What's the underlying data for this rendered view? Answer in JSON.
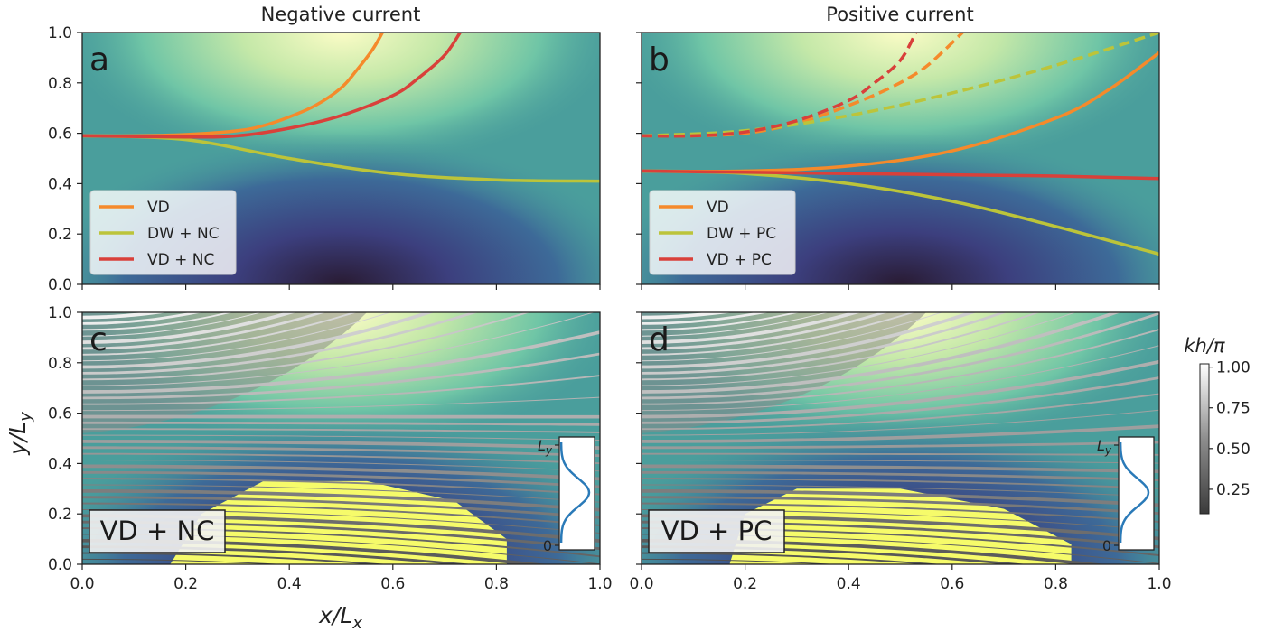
{
  "figure": {
    "column_titles": [
      "Negative current",
      "Positive current"
    ],
    "xlabel": "x/L_x",
    "ylabel": "y/L_y",
    "colorbar": {
      "label": "kh/π",
      "ticks": [
        "0.25",
        "0.50",
        "0.75",
        "1.00"
      ],
      "range": [
        0.1,
        1.02
      ]
    },
    "colors": {
      "VD": "#f58a2b",
      "DW": "#bcc43a",
      "VDC": "#d9403a",
      "inset_curve": "#2a7ab8"
    }
  },
  "chart_data": [
    {
      "panel": "a",
      "type": "line",
      "column": "Negative current",
      "xlim": [
        0,
        1
      ],
      "ylim": [
        0,
        1
      ],
      "xticks": [
        "0.0",
        "0.2",
        "0.4",
        "0.6",
        "0.8",
        "1.0"
      ],
      "yticks": [
        "0.0",
        "0.2",
        "0.4",
        "0.6",
        "0.8",
        "1.0"
      ],
      "legend_position": "lower-left",
      "series": [
        {
          "name": "VD",
          "color": "#f58a2b",
          "style": "solid",
          "x": [
            0,
            0.1,
            0.2,
            0.3,
            0.35,
            0.4,
            0.45,
            0.5,
            0.53,
            0.56,
            0.58
          ],
          "y": [
            0.59,
            0.59,
            0.595,
            0.61,
            0.63,
            0.665,
            0.71,
            0.78,
            0.85,
            0.93,
            1.0
          ]
        },
        {
          "name": "DW + NC",
          "color": "#bcc43a",
          "style": "solid",
          "x": [
            0,
            0.2,
            0.4,
            0.6,
            0.8,
            1.0
          ],
          "y": [
            0.59,
            0.575,
            0.5,
            0.44,
            0.415,
            0.41
          ]
        },
        {
          "name": "VD + NC",
          "color": "#d9403a",
          "style": "solid",
          "x": [
            0,
            0.2,
            0.3,
            0.4,
            0.5,
            0.6,
            0.65,
            0.7,
            0.73
          ],
          "y": [
            0.59,
            0.585,
            0.59,
            0.62,
            0.67,
            0.75,
            0.82,
            0.91,
            1.0
          ]
        }
      ]
    },
    {
      "panel": "b",
      "type": "line",
      "column": "Positive current",
      "xlim": [
        0,
        1
      ],
      "ylim": [
        0,
        1
      ],
      "xticks": [
        "0.0",
        "0.2",
        "0.4",
        "0.6",
        "0.8",
        "1.0"
      ],
      "legend_position": "lower-left",
      "series": [
        {
          "name": "VD",
          "color": "#f58a2b",
          "style": "solid",
          "x": [
            0,
            0.2,
            0.4,
            0.6,
            0.8,
            0.9,
            1.0
          ],
          "y": [
            0.45,
            0.45,
            0.47,
            0.53,
            0.66,
            0.77,
            0.92
          ]
        },
        {
          "name": "DW + PC",
          "color": "#bcc43a",
          "style": "solid",
          "x": [
            0,
            0.2,
            0.4,
            0.6,
            0.8,
            1.0
          ],
          "y": [
            0.45,
            0.44,
            0.4,
            0.33,
            0.23,
            0.12
          ]
        },
        {
          "name": "VD + PC",
          "color": "#d9403a",
          "style": "solid",
          "x": [
            0,
            0.2,
            0.4,
            0.6,
            0.8,
            1.0
          ],
          "y": [
            0.45,
            0.445,
            0.44,
            0.435,
            0.43,
            0.42
          ]
        },
        {
          "color": "#f58a2b",
          "style": "dashed",
          "x": [
            0,
            0.1,
            0.2,
            0.3,
            0.4,
            0.48,
            0.54,
            0.58,
            0.62
          ],
          "y": [
            0.59,
            0.59,
            0.6,
            0.64,
            0.71,
            0.78,
            0.85,
            0.92,
            1.0
          ]
        },
        {
          "color": "#bcc43a",
          "style": "dashed",
          "x": [
            0,
            0.2,
            0.4,
            0.6,
            0.8,
            1.0
          ],
          "y": [
            0.59,
            0.61,
            0.67,
            0.76,
            0.87,
            1.0
          ]
        },
        {
          "color": "#d9403a",
          "style": "dashed",
          "x": [
            0,
            0.1,
            0.2,
            0.3,
            0.4,
            0.45,
            0.5,
            0.53
          ],
          "y": [
            0.59,
            0.59,
            0.605,
            0.65,
            0.73,
            0.8,
            0.89,
            1.0
          ]
        }
      ]
    },
    {
      "panel": "c",
      "type": "line",
      "xlim": [
        0,
        1
      ],
      "ylim": [
        0,
        1
      ],
      "xticks": [
        "0.0",
        "0.2",
        "0.4",
        "0.6",
        "0.8",
        "1.0"
      ],
      "yticks": [
        "0.0",
        "0.2",
        "0.4",
        "0.6",
        "0.8",
        "1.0"
      ],
      "label_box": "VD + NC",
      "ray_tracing_lines": 40,
      "inset": {
        "ytick_labels": [
          "L_y",
          "0"
        ]
      }
    },
    {
      "panel": "d",
      "type": "line",
      "xlim": [
        0,
        1
      ],
      "ylim": [
        0,
        1
      ],
      "xticks": [
        "0.0",
        "0.2",
        "0.4",
        "0.6",
        "0.8",
        "1.0"
      ],
      "label_box": "VD + PC",
      "ray_tracing_lines": 40,
      "inset": {
        "ytick_labels": [
          "L_y",
          "0"
        ]
      }
    }
  ]
}
